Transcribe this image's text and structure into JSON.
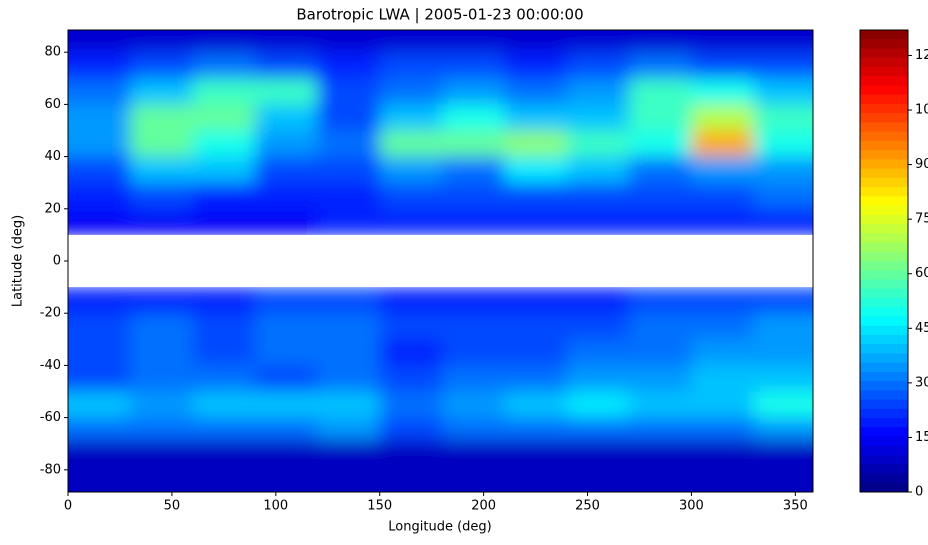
{
  "chart_data": {
    "type": "heatmap",
    "title": "Barotropic LWA | 2005-01-23 00:00:00",
    "x_label": "Longitude (deg)",
    "y_label": "Latitude (deg)",
    "colormap": "jet",
    "x": [
      15,
      45,
      75,
      105,
      135,
      165,
      195,
      225,
      255,
      285,
      315,
      345
    ],
    "y": [
      85,
      75,
      65,
      55,
      45,
      35,
      25,
      15,
      -15,
      -25,
      -35,
      -45,
      -55,
      -65,
      -75,
      -85
    ],
    "z": [
      [
        10,
        10,
        10,
        10,
        10,
        10,
        10,
        10,
        10,
        10,
        10,
        10
      ],
      [
        20,
        25,
        30,
        25,
        20,
        25,
        25,
        20,
        25,
        30,
        25,
        25
      ],
      [
        30,
        40,
        55,
        55,
        25,
        30,
        35,
        30,
        35,
        55,
        50,
        40
      ],
      [
        35,
        60,
        60,
        40,
        25,
        40,
        50,
        40,
        40,
        55,
        70,
        55
      ],
      [
        35,
        60,
        50,
        35,
        30,
        60,
        60,
        65,
        55,
        50,
        90,
        50
      ],
      [
        25,
        40,
        40,
        25,
        25,
        35,
        30,
        45,
        40,
        30,
        35,
        35
      ],
      [
        20,
        25,
        20,
        20,
        20,
        25,
        25,
        25,
        25,
        25,
        25,
        30
      ],
      [
        15,
        15,
        15,
        15,
        20,
        20,
        20,
        20,
        20,
        20,
        20,
        20
      ],
      [
        20,
        20,
        20,
        25,
        25,
        20,
        20,
        20,
        20,
        25,
        25,
        25
      ],
      [
        25,
        30,
        25,
        30,
        30,
        25,
        25,
        25,
        25,
        30,
        30,
        35
      ],
      [
        25,
        30,
        25,
        30,
        30,
        20,
        25,
        25,
        30,
        30,
        35,
        35
      ],
      [
        25,
        30,
        30,
        25,
        30,
        25,
        30,
        30,
        35,
        35,
        40,
        40
      ],
      [
        40,
        35,
        40,
        40,
        40,
        30,
        35,
        40,
        45,
        40,
        40,
        50
      ],
      [
        30,
        30,
        30,
        30,
        35,
        25,
        30,
        30,
        30,
        30,
        30,
        35
      ],
      [
        20,
        20,
        20,
        20,
        20,
        20,
        20,
        20,
        20,
        20,
        20,
        20
      ],
      [
        8,
        8,
        8,
        8,
        8,
        8,
        8,
        8,
        8,
        8,
        8,
        8
      ]
    ],
    "xlim": [
      0,
      358.5
    ],
    "xticks": [
      0,
      50,
      100,
      150,
      200,
      250,
      300,
      350
    ],
    "ylim": [
      -88.5,
      88.5
    ],
    "yticks": [
      -80,
      -60,
      -40,
      -20,
      0,
      20,
      40,
      60,
      80
    ],
    "colorbar": {
      "lim": [
        0,
        127
      ],
      "ticks": [
        0,
        15,
        30,
        45,
        60,
        75,
        90,
        105,
        120
      ]
    }
  }
}
